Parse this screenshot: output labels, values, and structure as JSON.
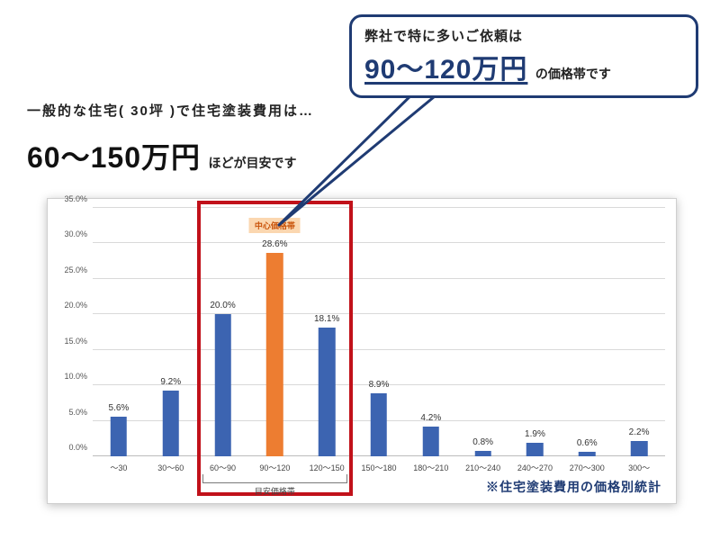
{
  "callout": {
    "line1": "弊社で特に多いご依頼は",
    "big": "90〜120万円",
    "suffix": "の価格帯です",
    "border_color": "#1f3b73",
    "text_color": "#1f3b73"
  },
  "intro": {
    "line1": "一般的な住宅( 30坪 )で住宅塗装費用は…",
    "big": "60〜150万円",
    "small": "ほどが目安です"
  },
  "chart": {
    "type": "bar",
    "categories": [
      "〜30",
      "30〜60",
      "60〜90",
      "90〜120",
      "120〜150",
      "150〜180",
      "180〜210",
      "210〜240",
      "240〜270",
      "270〜300",
      "300〜"
    ],
    "values": [
      5.6,
      9.2,
      20.0,
      28.6,
      18.1,
      8.9,
      4.2,
      0.8,
      1.9,
      0.6,
      2.2
    ],
    "value_labels": [
      "5.6%",
      "9.2%",
      "20.0%",
      "28.6%",
      "18.1%",
      "8.9%",
      "4.2%",
      "0.8%",
      "1.9%",
      "0.6%",
      "2.2%"
    ],
    "bar_colors": [
      "#3c64b1",
      "#3c64b1",
      "#3c64b1",
      "#ed7d31",
      "#3c64b1",
      "#3c64b1",
      "#3c64b1",
      "#3c64b1",
      "#3c64b1",
      "#3c64b1",
      "#3c64b1"
    ],
    "ylim": [
      0,
      35
    ],
    "ytick_step": 5,
    "ytick_labels": [
      "0.0%",
      "5.0%",
      "10.0%",
      "15.0%",
      "20.0%",
      "25.0%",
      "30.0%",
      "35.0%"
    ],
    "grid_color": "#d9d9d9",
    "grid_color_bold": "#bcbcbc",
    "bar_width_ratio": 0.32,
    "center_band_label": "中心価格帯",
    "center_band_bg": "#fbd7b0",
    "center_band_fg": "#c9530a",
    "highlight": {
      "start_index": 2,
      "end_index": 4,
      "color": "#c1111a"
    },
    "bracket_label": "目安価格帯",
    "footnote": "※住宅塗装費用の価格別統計",
    "footnote_color": "#1f3b73",
    "background_color": "#ffffff"
  }
}
